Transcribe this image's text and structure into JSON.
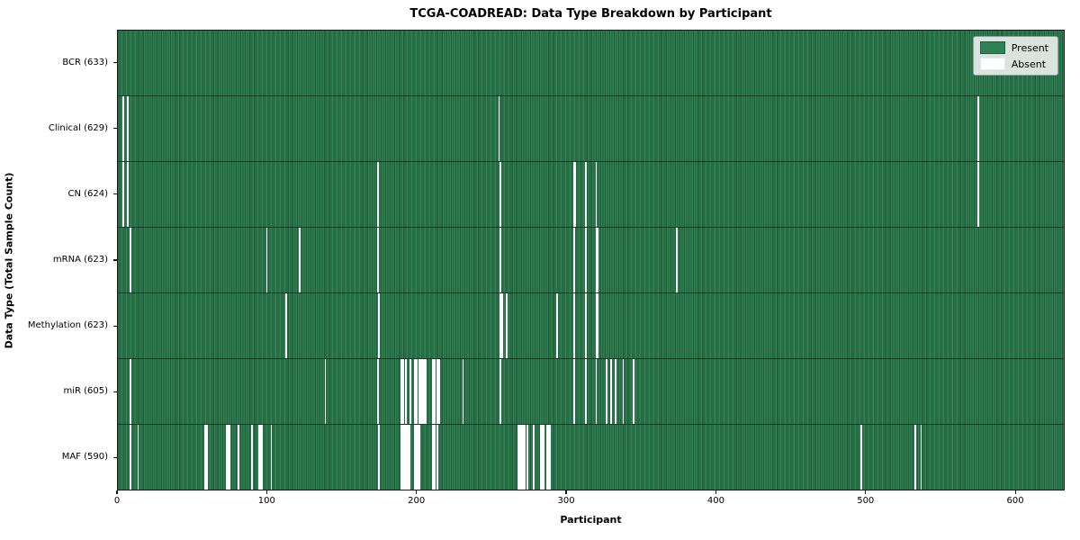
{
  "title": "TCGA-COADREAD: Data Type Breakdown by Participant",
  "xlabel": "Participant",
  "ylabel": "Data Type (Total Sample Count)",
  "legend": {
    "present_label": "Present",
    "absent_label": "Absent"
  },
  "colors": {
    "present": "#2e7d4f",
    "present_edge": "#1e5c3b",
    "absent": "#ffffff",
    "plot_border": "#1a1a1a",
    "legend_background": "#f0f0f0"
  },
  "chart_data": {
    "type": "heatmap",
    "title": "TCGA-COADREAD: Data Type Breakdown by Participant",
    "xlabel": "Participant",
    "ylabel": "Data Type (Total Sample Count)",
    "x_ticks": [
      0,
      100,
      200,
      300,
      400,
      500,
      600
    ],
    "xlim": [
      0,
      633
    ],
    "total_participants": 633,
    "grid": false,
    "legend_position": "upper-right",
    "legend_entries": [
      "Present",
      "Absent"
    ],
    "rows": [
      {
        "label": "BCR (633)",
        "name": "BCR",
        "present_count": 633,
        "absent_participants": []
      },
      {
        "label": "Clinical (629)",
        "name": "Clinical",
        "present_count": 629,
        "absent_participants": [
          3,
          6,
          254,
          574
        ]
      },
      {
        "label": "CN (624)",
        "name": "CN",
        "present_count": 624,
        "absent_participants": [
          3,
          6,
          173,
          255,
          304,
          305,
          312,
          319,
          574
        ]
      },
      {
        "label": "mRNA (623)",
        "name": "mRNA",
        "present_count": 623,
        "absent_participants": [
          8,
          99,
          121,
          173,
          255,
          304,
          312,
          319,
          320,
          373
        ]
      },
      {
        "label": "Methylation (623)",
        "name": "Methylation",
        "present_count": 623,
        "absent_participants": [
          112,
          174,
          255,
          256,
          259,
          293,
          304,
          312,
          319,
          320
        ]
      },
      {
        "label": "miR (605)",
        "name": "miR",
        "present_count": 605,
        "absent_participants": [
          8,
          138,
          173,
          189,
          190,
          192,
          195,
          198,
          199,
          201,
          202,
          203,
          204,
          205,
          210,
          211,
          213,
          214,
          230,
          255,
          304,
          312,
          319,
          326,
          329,
          332,
          337,
          344
        ]
      },
      {
        "label": "MAF (590)",
        "name": "MAF",
        "present_count": 590,
        "absent_participants": [
          8,
          13,
          58,
          59,
          72,
          73,
          74,
          80,
          89,
          94,
          95,
          96,
          102,
          174,
          189,
          190,
          191,
          192,
          193,
          194,
          198,
          199,
          200,
          201,
          210,
          211,
          213,
          267,
          268,
          269,
          270,
          271,
          273,
          277,
          282,
          283,
          284,
          286,
          287,
          288,
          496,
          532,
          536
        ]
      }
    ]
  }
}
